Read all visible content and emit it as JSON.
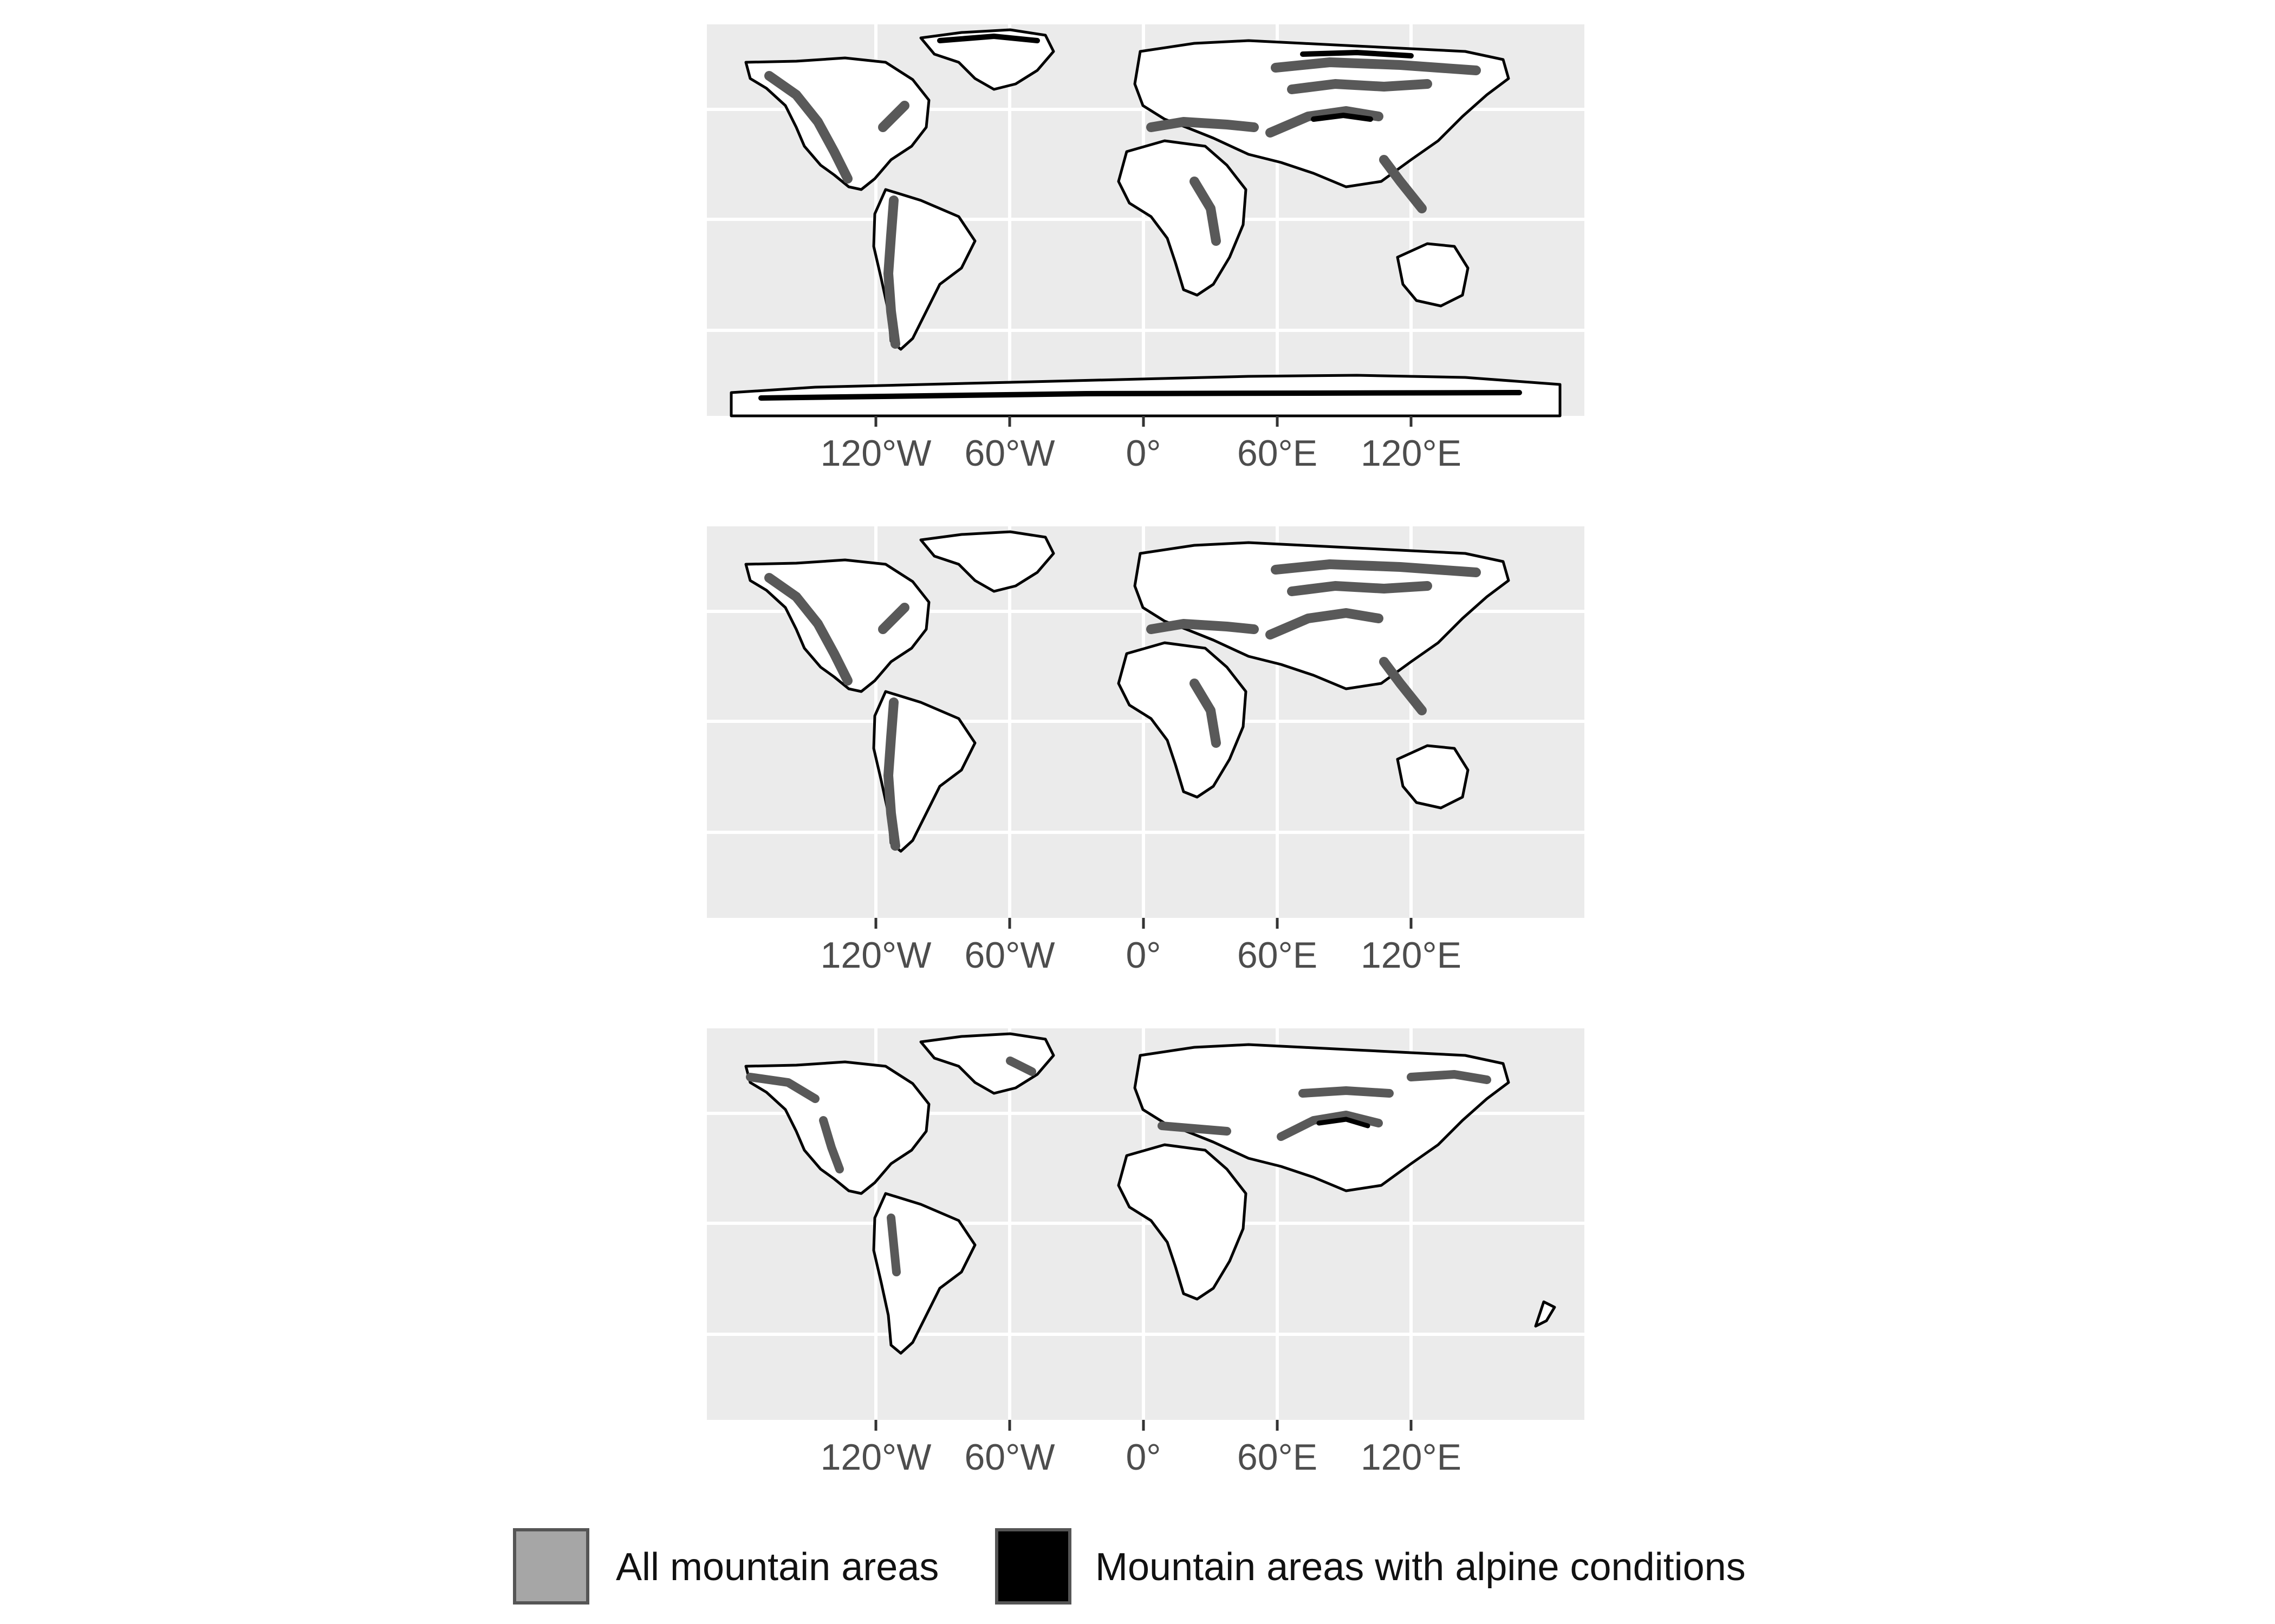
{
  "figure": {
    "axes": {
      "x_ticks": [
        "120°W",
        "60°W",
        "0°",
        "60°E",
        "120°E"
      ],
      "x_tick_values": [
        -120,
        -60,
        0,
        60,
        120
      ],
      "y_grid_values": [
        60,
        30,
        -30,
        -60
      ],
      "xlim": [
        -180,
        180
      ],
      "ylim": [
        -90,
        90
      ],
      "grid": true
    },
    "colors": {
      "panel_background": "#ebebeb",
      "grid_line": "#ffffff",
      "land": "#ffffff",
      "coastline": "#000000",
      "mountain": "#595959",
      "alpine": "#000000",
      "legend_all_swatch": "#a6a6a6",
      "legend_alpine_swatch": "#000000"
    },
    "panels": [
      {
        "id": "top"
      },
      {
        "id": "middle"
      },
      {
        "id": "bottom"
      }
    ]
  },
  "legend": {
    "position": "bottom",
    "items": [
      {
        "label": "All mountain areas",
        "swatch": "#a6a6a6"
      },
      {
        "label": "Mountain areas with alpine conditions",
        "swatch": "#000000"
      }
    ]
  }
}
